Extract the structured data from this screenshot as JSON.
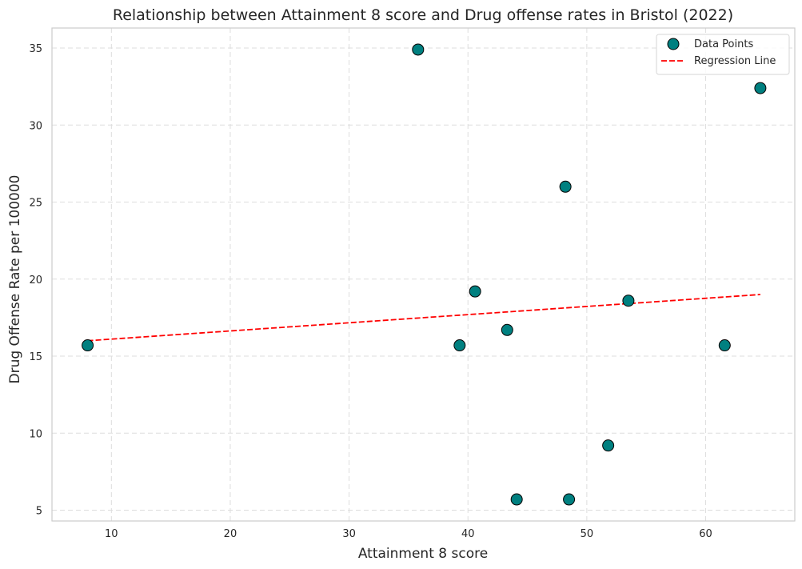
{
  "chart_data": {
    "type": "scatter",
    "title": "Relationship between Attainment 8 score and Drug offense rates in Bristol (2022)",
    "xlabel": "Attainment 8 score",
    "ylabel": "Drug Offense Rate per 100000",
    "xlim": [
      5,
      67.5
    ],
    "ylim": [
      4.3,
      36.3
    ],
    "xticks": [
      10,
      20,
      30,
      40,
      50,
      60
    ],
    "yticks": [
      5,
      10,
      15,
      20,
      25,
      30,
      35
    ],
    "grid": true,
    "legend_position": "top-right",
    "series": [
      {
        "name": "Data Points",
        "kind": "scatter",
        "color": "#008080",
        "edge_color": "#000000",
        "points": [
          {
            "x": 8.0,
            "y": 15.7
          },
          {
            "x": 35.8,
            "y": 34.9
          },
          {
            "x": 39.3,
            "y": 15.7
          },
          {
            "x": 40.6,
            "y": 19.2
          },
          {
            "x": 43.3,
            "y": 16.7
          },
          {
            "x": 44.1,
            "y": 5.7
          },
          {
            "x": 48.2,
            "y": 26.0
          },
          {
            "x": 48.5,
            "y": 5.7
          },
          {
            "x": 51.8,
            "y": 9.2
          },
          {
            "x": 53.5,
            "y": 18.6
          },
          {
            "x": 61.6,
            "y": 15.7
          },
          {
            "x": 64.6,
            "y": 32.4
          }
        ]
      },
      {
        "name": "Regression Line",
        "kind": "line",
        "style": "dashed",
        "color": "#ff0000",
        "points": [
          {
            "x": 8.0,
            "y": 16.0
          },
          {
            "x": 64.6,
            "y": 19.0
          }
        ]
      }
    ]
  }
}
